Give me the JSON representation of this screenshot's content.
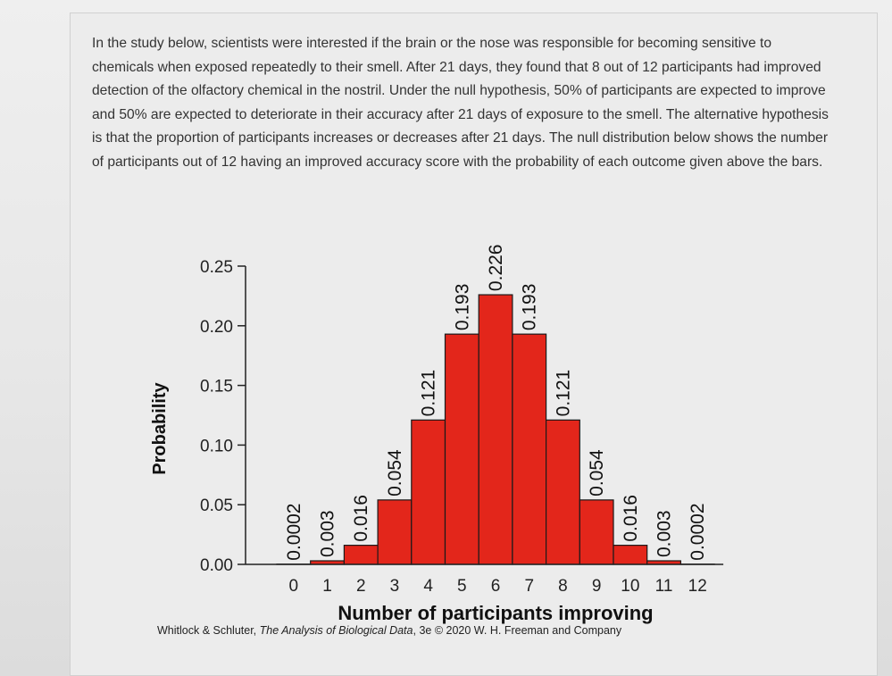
{
  "question_text": "In the study below, scientists were interested if the brain or the nose was responsible for becoming sensitive to chemicals when exposed repeatedly to their smell. After 21 days, they found that 8 out of 12 participants had improved detection of the olfactory chemical in the nostril. Under the null hypothesis, 50% of participants are expected to improve and 50% are expected to deteriorate in their accuracy after 21 days of exposure to the smell. The alternative hypothesis is that the proportion of participants increases or decreases after 21 days. The null distribution below shows the number of participants out of 12 having an improved accuracy score with the probability of each outcome given above the bars.",
  "credit": {
    "authors": "Whitlock & Schluter,",
    "book": "The Analysis of Biological Data",
    "rest": ", 3e © 2020 W. H. Freeman and Company"
  },
  "colors": {
    "bar": "#e3261b",
    "bar_stroke": "#1a1a1a",
    "axis": "#222222"
  },
  "chart_data": {
    "type": "bar",
    "title": "",
    "xlabel": "Number of participants improving",
    "ylabel": "Probability",
    "ylim": [
      0,
      0.25
    ],
    "yticks": [
      "0.00",
      "0.05",
      "0.10",
      "0.15",
      "0.20",
      "0.25"
    ],
    "categories": [
      "0",
      "1",
      "2",
      "3",
      "4",
      "5",
      "6",
      "7",
      "8",
      "9",
      "10",
      "11",
      "12"
    ],
    "values": [
      0.0002,
      0.003,
      0.016,
      0.054,
      0.121,
      0.193,
      0.226,
      0.193,
      0.121,
      0.054,
      0.016,
      0.003,
      0.0002
    ],
    "value_labels": [
      "0.0002",
      "0.003",
      "0.016",
      "0.054",
      "0.121",
      "0.193",
      "0.226",
      "0.193",
      "0.121",
      "0.054",
      "0.016",
      "0.003",
      "0.0002"
    ],
    "grid": false,
    "legend": "none"
  }
}
